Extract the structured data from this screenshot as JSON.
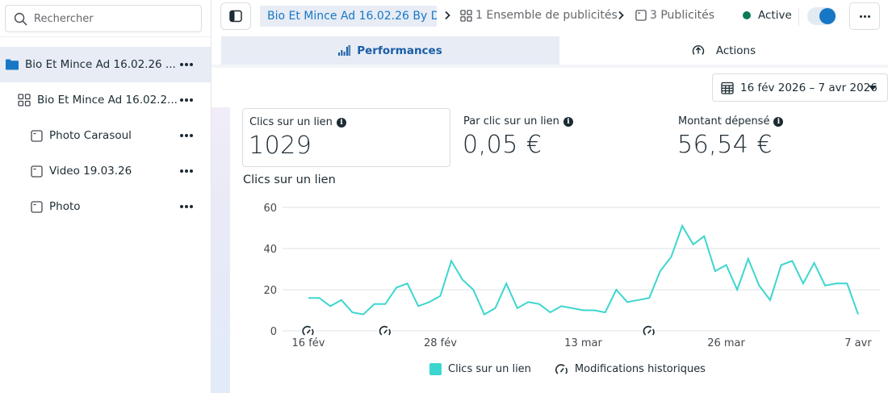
{
  "sidebar": {
    "search_placeholder": "Rechercher",
    "items": [
      {
        "label": "Bio Et Mince Ad 16.02.26 ...",
        "type": "campaign",
        "icon": "folder-icon",
        "selected": true
      },
      {
        "label": "Bio Et Mince Ad 16.02.2...",
        "type": "adset",
        "icon": "grid-icon",
        "selected": false
      },
      {
        "label": "Photo Carasoul",
        "type": "ad",
        "icon": "ad-icon",
        "selected": false
      },
      {
        "label": "Video 19.03.26",
        "type": "ad",
        "icon": "ad-icon",
        "selected": false
      },
      {
        "label": "Photo",
        "type": "ad",
        "icon": "ad-icon",
        "selected": false
      }
    ]
  },
  "topbar": {
    "breadcrumb": {
      "campaign": "Bio Et Mince Ad 16.02.26 By D",
      "adsets": "1 Ensemble de publicités",
      "ads": "3 Publicités"
    },
    "status": "Active",
    "status_color": "#0a7d57",
    "toggle_on": true
  },
  "tabs": [
    {
      "label": "Performances",
      "active": true,
      "icon": "bar-chart-icon"
    },
    {
      "label": "Actions",
      "active": false,
      "icon": "arrow-up-circle-icon"
    }
  ],
  "date_range": "16 fév 2026 – 7 avr 2026",
  "kpis": [
    {
      "title": "Clics sur un lien",
      "value": "1029"
    },
    {
      "title": "Par clic sur un lien",
      "value": "0,05 €"
    },
    {
      "title": "Montant dépensé",
      "value": "56,54 €"
    }
  ],
  "chart_title": "Clics sur un lien",
  "legend": {
    "series": "Clics sur un lien",
    "markers": "Modifications historiques"
  },
  "colors": {
    "accent": "#1877c5",
    "series": "#3dd6cf",
    "grid": "#e4e6eb"
  },
  "chart_data": {
    "type": "line",
    "title": "Clics sur un lien",
    "xlabel": "",
    "ylabel": "",
    "ylim": [
      0,
      60
    ],
    "yticks": [
      0,
      20,
      40,
      60
    ],
    "xtick_labels": [
      "16 fév",
      "28 fév",
      "13 mar",
      "26 mar",
      "7 avr"
    ],
    "xtick_index": [
      0,
      12,
      25,
      38,
      50
    ],
    "grid": true,
    "legend_position": "bottom",
    "x_start": "16 fév 2026",
    "x_end": "7 avr 2026",
    "series": [
      {
        "name": "Clics sur un lien",
        "color": "#3dd6cf",
        "values": [
          16,
          16,
          12,
          15,
          9,
          8,
          13,
          13,
          21,
          23,
          12,
          14,
          17,
          34,
          25,
          20,
          8,
          11,
          23,
          11,
          14,
          13,
          9,
          12,
          11,
          10,
          10,
          9,
          20,
          14,
          15,
          16,
          29,
          36,
          51,
          42,
          46,
          29,
          32,
          20,
          35,
          22,
          15,
          32,
          34,
          23,
          33,
          22,
          23,
          23,
          8
        ]
      }
    ],
    "annotations": [
      {
        "type": "Modifications historiques",
        "index": 0
      },
      {
        "type": "Modifications historiques",
        "index": 7
      },
      {
        "type": "Modifications historiques",
        "index": 31
      }
    ]
  }
}
